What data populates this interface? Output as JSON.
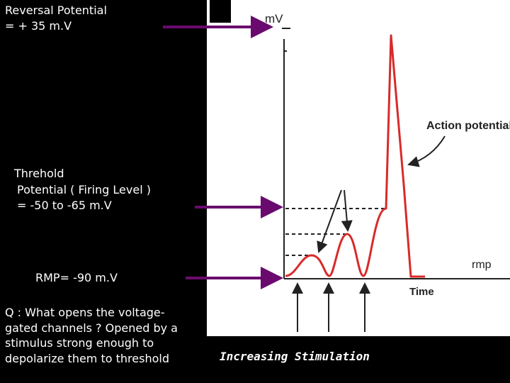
{
  "annotations": {
    "reversal_line1": "Reversal Potential",
    "reversal_line2": "= + 35 m.V",
    "threshold_line1": "Threhold",
    "threshold_line2": "Potential ( Firing Level )",
    "threshold_line3": "= -50 to -65 m.V",
    "rmp": "RMP= -90 m.V",
    "question": "Q : What opens the voltage-gated channels ? Opened by a stimulus strong enough to depolarize them to threshold",
    "stimulation": "Increasing Stimulation"
  },
  "diagram": {
    "y_axis_label": "mV",
    "x_axis_label": "Time",
    "action_potential_label": "Action potential",
    "rmp_label": "rmp"
  },
  "colors": {
    "arrow": "#6a0a6e",
    "curve": "#d82a2a",
    "background": "#000000"
  }
}
